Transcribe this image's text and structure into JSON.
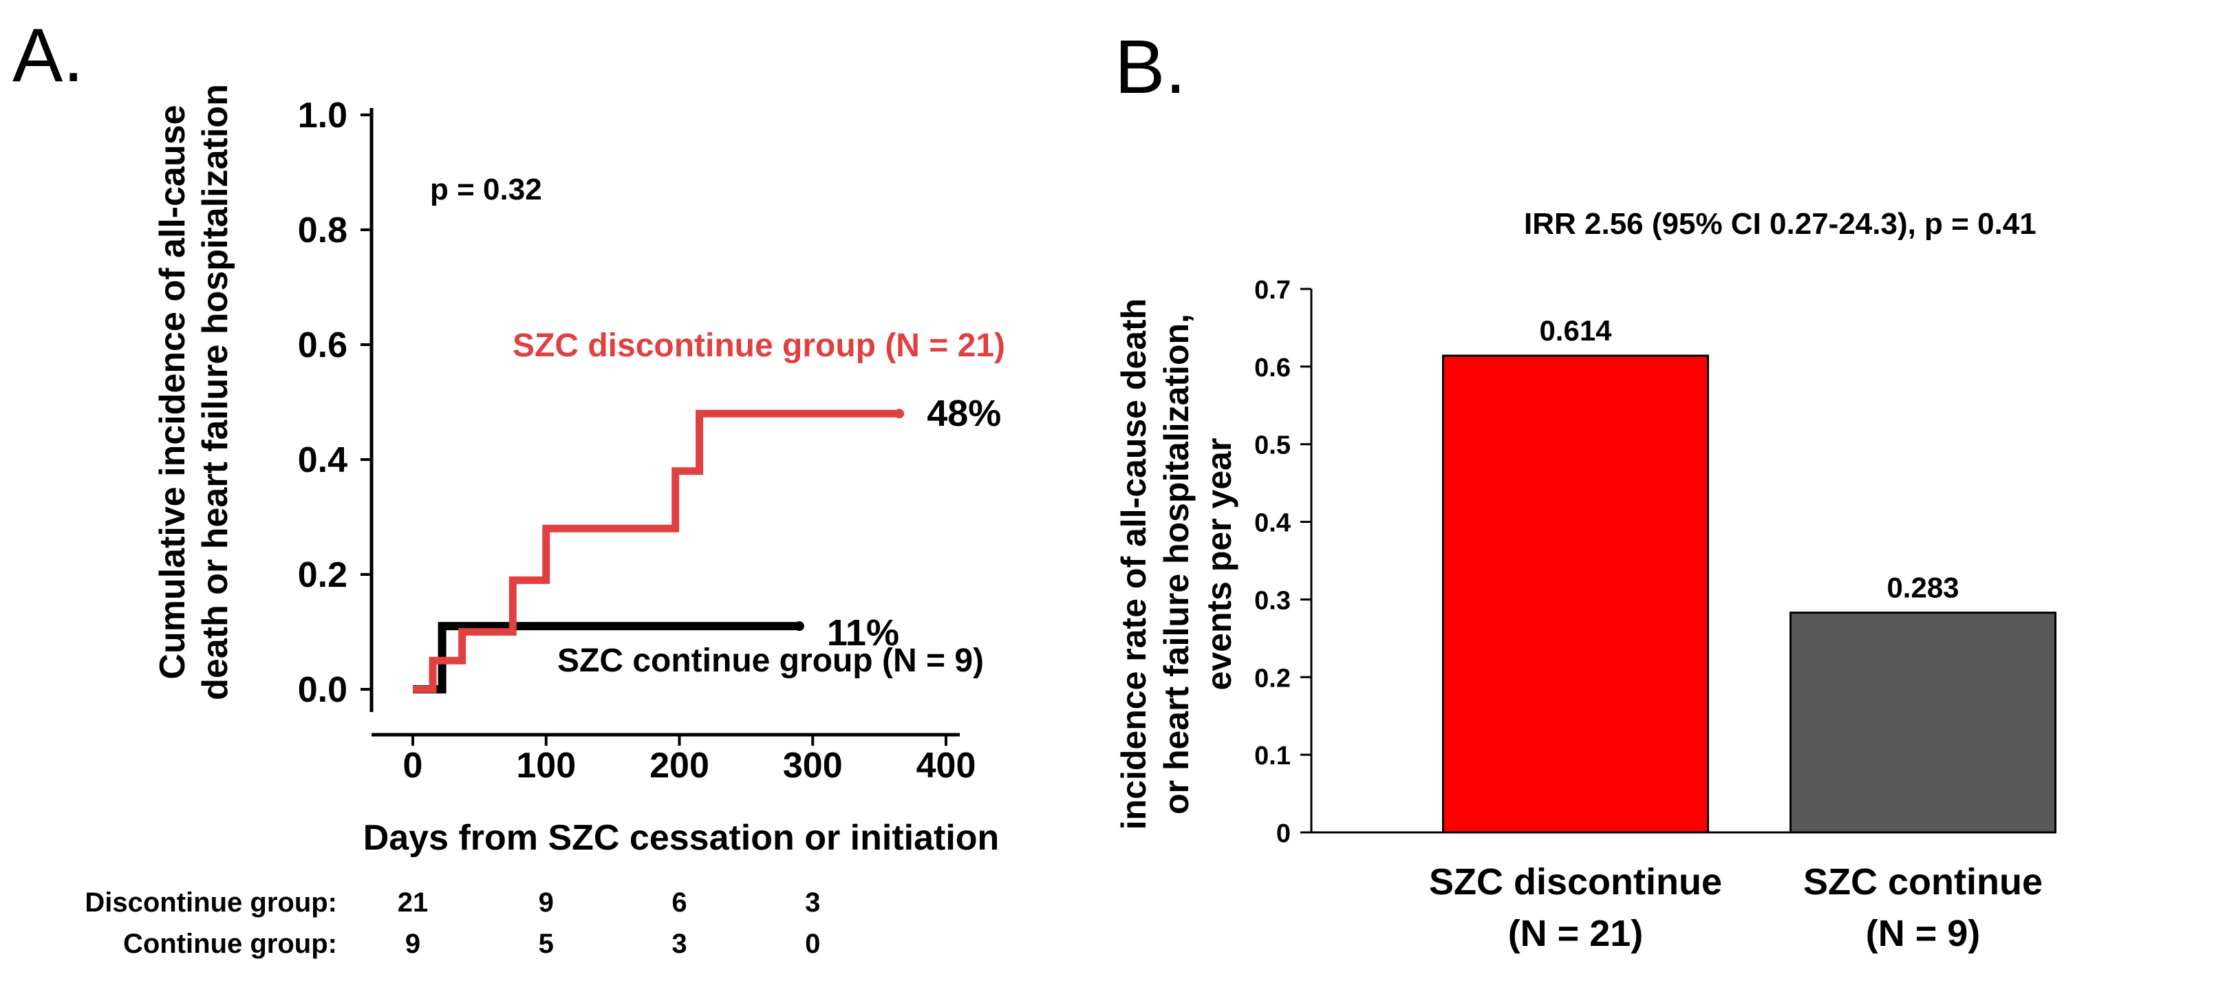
{
  "chart_data": [
    {
      "type": "line",
      "panel_label": "A.",
      "xlabel": "Days from SZC cessation or initiation",
      "ylabel_lines": [
        "Cumulative incidence of all-cause",
        "death or heart failure hospitalization"
      ],
      "xlim": [
        0,
        400
      ],
      "ylim": [
        0,
        1.0
      ],
      "xticks": [
        0,
        100,
        200,
        300,
        400
      ],
      "yticks": [
        "0.0",
        "0.2",
        "0.4",
        "0.6",
        "0.8",
        "1.0"
      ],
      "ytick_values": [
        0,
        0.2,
        0.4,
        0.6,
        0.8,
        1.0
      ],
      "annotation": "p = 0.32",
      "series": [
        {
          "name": "SZC discontinue group (N = 21)",
          "color": "#e04040",
          "end_label": "48%",
          "steps": [
            [
              0,
              0
            ],
            [
              15,
              0.05
            ],
            [
              30,
              0.05
            ],
            [
              37,
              0.1
            ],
            [
              75,
              0.1
            ],
            [
              75,
              0.19
            ],
            [
              100,
              0.19
            ],
            [
              100,
              0.28
            ],
            [
              197,
              0.28
            ],
            [
              197,
              0.38
            ],
            [
              215,
              0.38
            ],
            [
              215,
              0.48
            ],
            [
              365,
              0.48
            ]
          ]
        },
        {
          "name": "SZC continue group (N = 9)",
          "color": "#000000",
          "end_label": "11%",
          "steps": [
            [
              0,
              0
            ],
            [
              22,
              0
            ],
            [
              22,
              0.11
            ],
            [
              290,
              0.11
            ]
          ]
        }
      ],
      "risk_table": {
        "rows": [
          {
            "label": "Discontinue group:",
            "values": [
              "21",
              "9",
              "6",
              "3"
            ]
          },
          {
            "label": "Continue group:",
            "values": [
              "9",
              "5",
              "3",
              "0"
            ]
          }
        ]
      }
    },
    {
      "type": "bar",
      "panel_label": "B.",
      "title": "IRR 2.56 (95%  CI 0.27-24.3), p = 0.41",
      "ylabel_lines": [
        "incidence rate of all-cause death",
        "or heart failure hospitalization,",
        "events per year"
      ],
      "ylim": [
        0,
        0.7
      ],
      "yticks": [
        "0",
        "0.1",
        "0.2",
        "0.3",
        "0.4",
        "0.5",
        "0.6",
        "0.7"
      ],
      "ytick_values": [
        0,
        0.1,
        0.2,
        0.3,
        0.4,
        0.5,
        0.6,
        0.7
      ],
      "categories": [
        {
          "line1": "SZC discontinue",
          "line2": "(N = 21)"
        },
        {
          "line1": "SZC continue",
          "line2": "(N = 9)"
        }
      ],
      "values": [
        0.614,
        0.283
      ],
      "value_labels": [
        "0.614",
        "0.283"
      ],
      "colors": [
        "#ff0000",
        "#595959"
      ]
    }
  ]
}
